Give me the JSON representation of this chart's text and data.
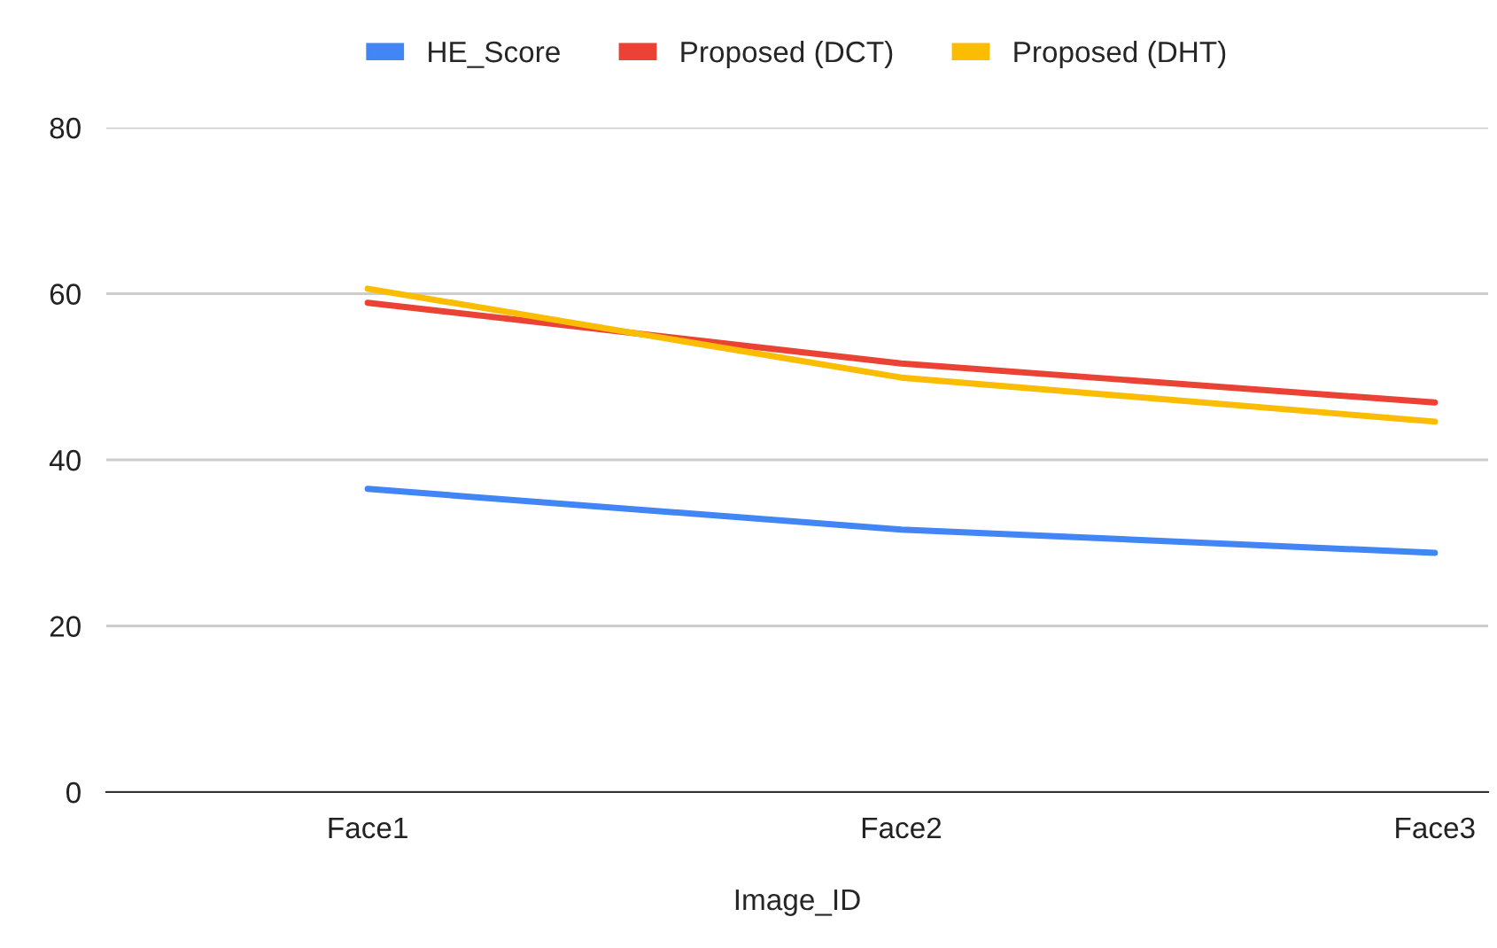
{
  "chart_data": {
    "type": "line",
    "xlabel": "Image_ID",
    "categories": [
      "Face1",
      "Face2",
      "Face3"
    ],
    "series": [
      {
        "name": "HE_Score",
        "color": "#4285f4",
        "values": [
          36.5,
          31.6,
          28.8
        ]
      },
      {
        "name": "Proposed (DCT)",
        "color": "#ea4335",
        "values": [
          58.9,
          51.6,
          46.9
        ]
      },
      {
        "name": "Proposed (DHT)",
        "color": "#fbbc04",
        "values": [
          60.6,
          49.9,
          44.6
        ]
      }
    ],
    "ylim": [
      0,
      80
    ],
    "yticks": [
      0,
      20,
      40,
      60,
      80
    ],
    "grid": "y",
    "legend": "top",
    "marker": "none",
    "line_style": "solid"
  }
}
